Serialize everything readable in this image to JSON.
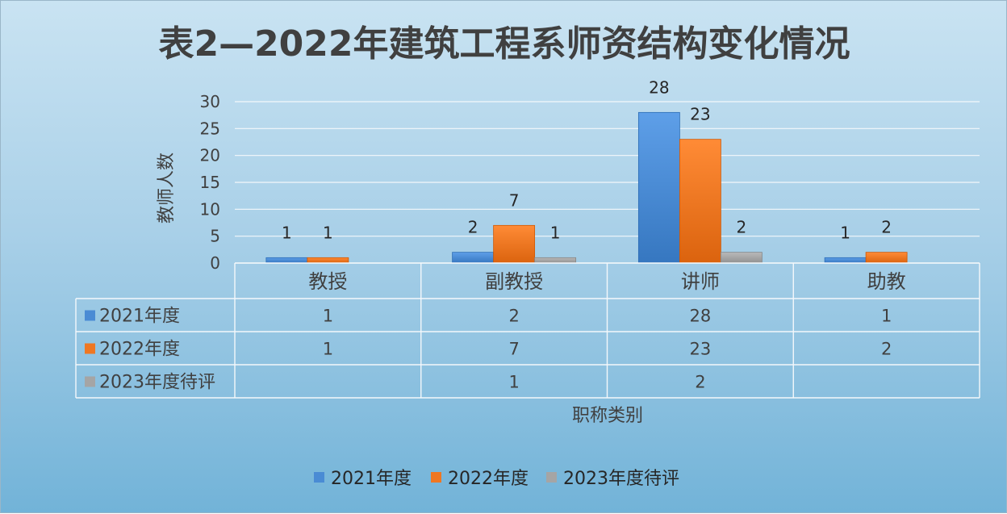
{
  "chart_data": {
    "type": "bar",
    "title": "表2—2022年建筑工程系师资结构变化情况",
    "xlabel": "职称类别",
    "ylabel": "教师人数",
    "categories": [
      "教授",
      "副教授",
      "讲师",
      "助教"
    ],
    "ylim": [
      0,
      30
    ],
    "yticks": [
      0,
      5,
      10,
      15,
      20,
      25,
      30
    ],
    "grid": true,
    "legend_position": "bottom",
    "data_table": true,
    "series": [
      {
        "name": "2021年度",
        "color": "#4a8bd4",
        "values": [
          1,
          2,
          28,
          1
        ]
      },
      {
        "name": "2022年度",
        "color": "#ef7722",
        "values": [
          1,
          7,
          23,
          2
        ]
      },
      {
        "name": "2023年度待评",
        "color": "#a5a5a5",
        "values": [
          null,
          1,
          2,
          null
        ]
      }
    ]
  }
}
